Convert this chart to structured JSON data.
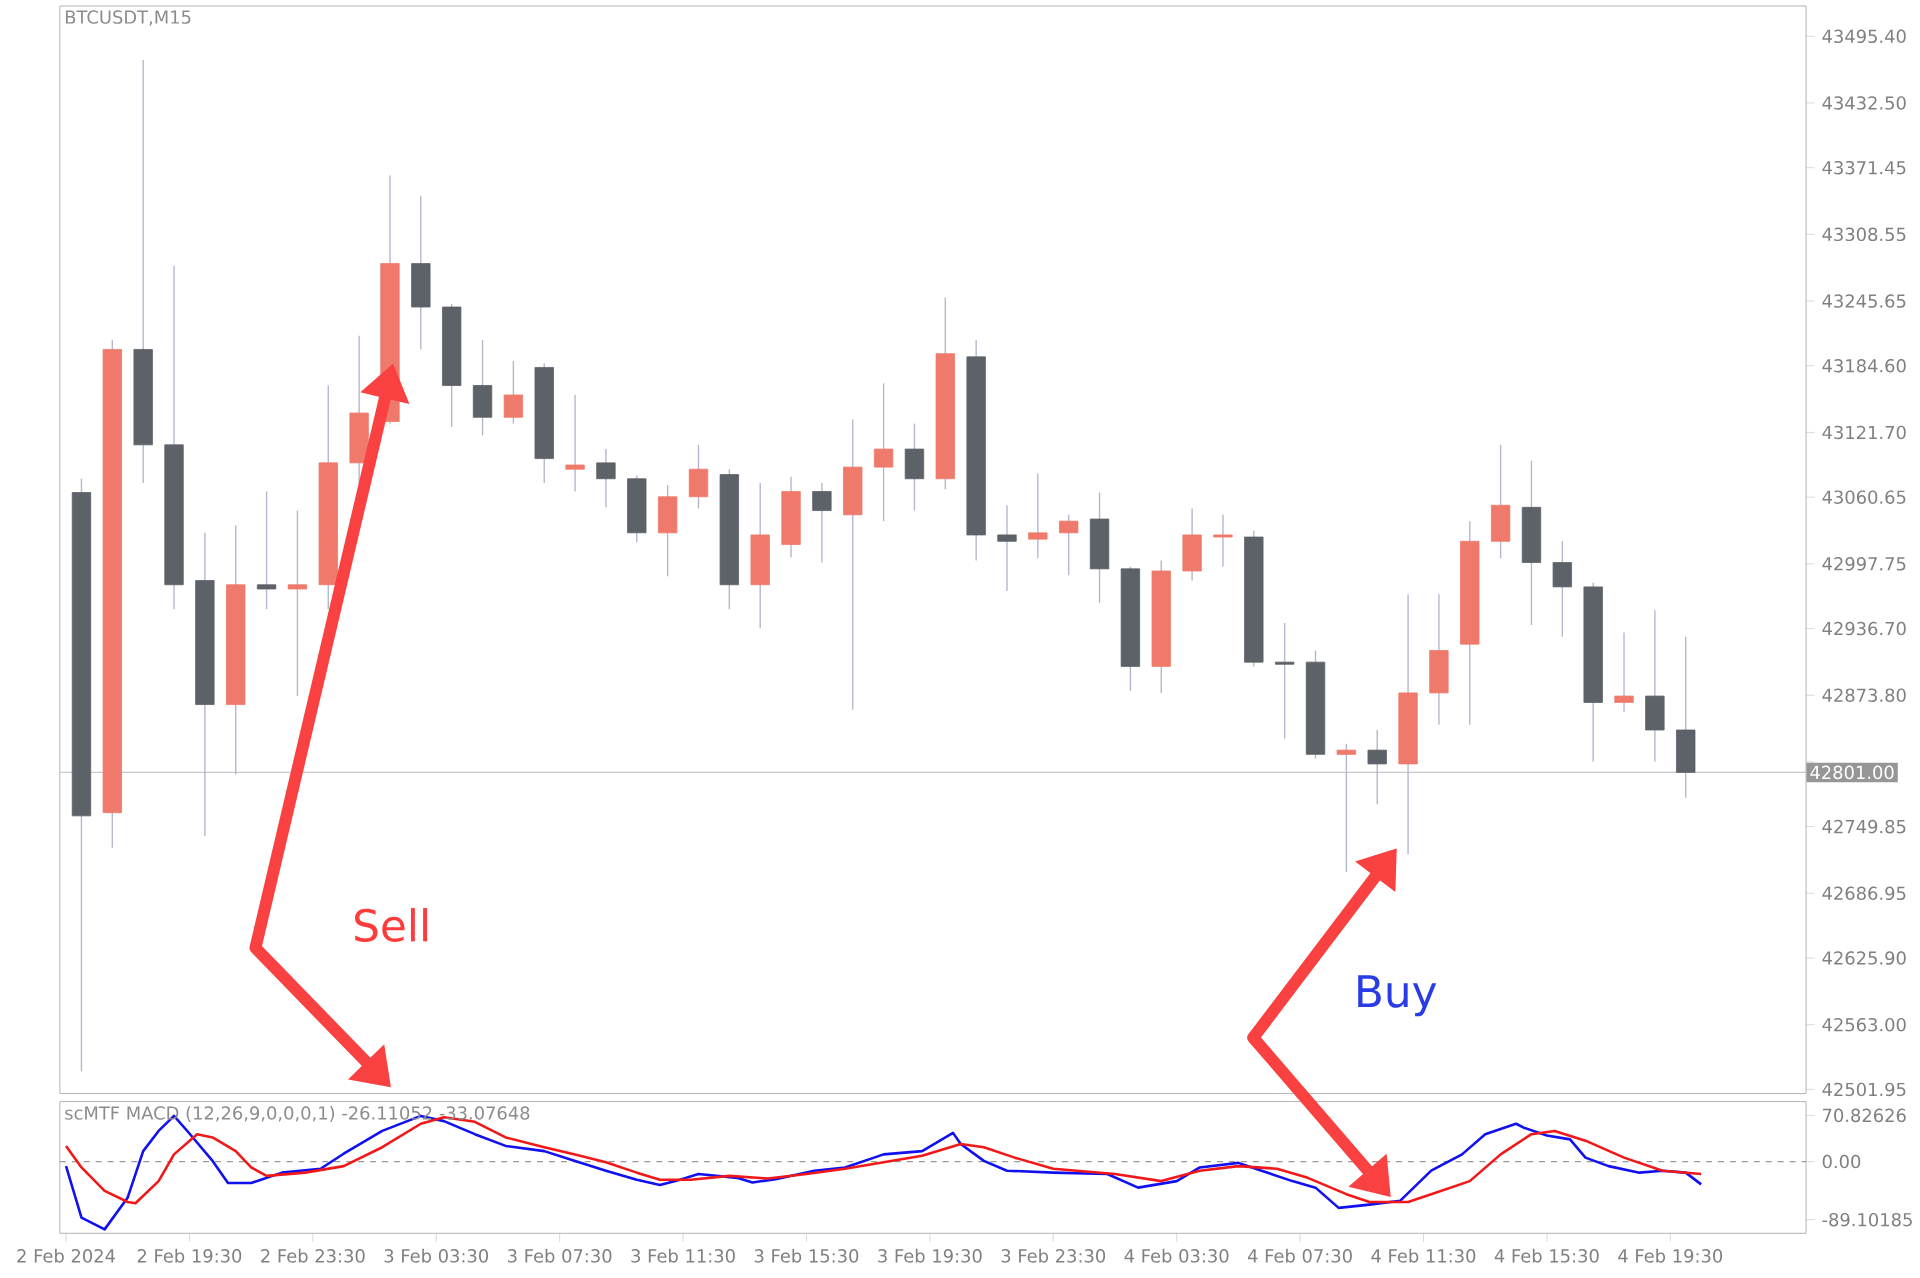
{
  "chart_data": [
    {
      "type": "candlestick",
      "title": "BTCUSDT,M15",
      "tick_labels": "y",
      "x": [
        "2024-02-02T16:00",
        "2024-02-02T17:00",
        "2024-02-02T18:00",
        "2024-02-02T19:00",
        "2024-02-02T20:00",
        "2024-02-02T21:00",
        "2024-02-02T22:00",
        "2024-02-02T23:00",
        "2024-02-03T00:00",
        "2024-02-03T01:00",
        "2024-02-03T02:00",
        "2024-02-03T03:00",
        "2024-02-03T04:00",
        "2024-02-03T05:00",
        "2024-02-03T06:00",
        "2024-02-03T07:00",
        "2024-02-03T08:00",
        "2024-02-03T09:00",
        "2024-02-03T10:00",
        "2024-02-03T11:00",
        "2024-02-03T12:00",
        "2024-02-03T13:00",
        "2024-02-03T14:00",
        "2024-02-03T15:00",
        "2024-02-03T16:00",
        "2024-02-03T17:00",
        "2024-02-03T18:00",
        "2024-02-03T19:00",
        "2024-02-03T20:00",
        "2024-02-03T21:00",
        "2024-02-03T22:00",
        "2024-02-03T23:00",
        "2024-02-04T00:00",
        "2024-02-04T01:00",
        "2024-02-04T02:00",
        "2024-02-04T03:00",
        "2024-02-04T04:00",
        "2024-02-04T05:00",
        "2024-02-04T06:00",
        "2024-02-04T07:00",
        "2024-02-04T08:00",
        "2024-02-04T09:00",
        "2024-02-04T10:00",
        "2024-02-04T11:00",
        "2024-02-04T12:00",
        "2024-02-04T13:00",
        "2024-02-04T14:00",
        "2024-02-04T15:00",
        "2024-02-04T16:00",
        "2024-02-04T17:00",
        "2024-02-04T18:00",
        "2024-02-04T19:00",
        "2024-02-04T20:00"
      ],
      "ohlc": [
        [
          43065,
          43078,
          42519,
          42760
        ],
        [
          42763,
          43209,
          42730,
          43200
        ],
        [
          43200,
          43473,
          43074,
          43110
        ],
        [
          43110,
          43279,
          42955,
          42978
        ],
        [
          42982,
          43027,
          42741,
          42865
        ],
        [
          42865,
          43034,
          42799,
          42978
        ],
        [
          42978,
          43066,
          42955,
          42974
        ],
        [
          42974,
          43048,
          42873,
          42978
        ],
        [
          42978,
          43166,
          42955,
          43093
        ],
        [
          43093,
          43213,
          43074,
          43140
        ],
        [
          43132,
          43364,
          43130,
          43281
        ],
        [
          43281,
          43345,
          43200,
          43240
        ],
        [
          43240,
          43243,
          43127,
          43166
        ],
        [
          43166,
          43209,
          43119,
          43136
        ],
        [
          43136,
          43189,
          43130,
          43157
        ],
        [
          43183,
          43187,
          43074,
          43097
        ],
        [
          43087,
          43157,
          43066,
          43091
        ],
        [
          43093,
          43106,
          43051,
          43078
        ],
        [
          43078,
          43081,
          43018,
          43027
        ],
        [
          43027,
          43072,
          42986,
          43061
        ],
        [
          43061,
          43110,
          43050,
          43087
        ],
        [
          43082,
          43087,
          42955,
          42978
        ],
        [
          42978,
          43074,
          42937,
          43025
        ],
        [
          43016,
          43080,
          43004,
          43066
        ],
        [
          43066,
          43074,
          42999,
          43048
        ],
        [
          43044,
          43134,
          42860,
          43089
        ],
        [
          43089,
          43168,
          43038,
          43106
        ],
        [
          43106,
          43130,
          43048,
          43078
        ],
        [
          43078,
          43249,
          43068,
          43196
        ],
        [
          43193,
          43209,
          43001,
          43025
        ],
        [
          43025,
          43053,
          42972,
          43019
        ],
        [
          43021,
          43083,
          43003,
          43027
        ],
        [
          43027,
          43044,
          42987,
          43038
        ],
        [
          43040,
          43065,
          42961,
          42993
        ],
        [
          42993,
          42995,
          42878,
          42901
        ],
        [
          42901,
          43001,
          42876,
          42991
        ],
        [
          42991,
          43050,
          42982,
          43025
        ],
        [
          43023,
          43044,
          42995,
          43025
        ],
        [
          43023,
          43029,
          42901,
          42905
        ],
        [
          42905,
          42942,
          42833,
          42903
        ],
        [
          42905,
          42916,
          42814,
          42818
        ],
        [
          42818,
          42828,
          42707,
          42822
        ],
        [
          42822,
          42841,
          42771,
          42809
        ],
        [
          42809,
          42969,
          42724,
          42876
        ],
        [
          42876,
          42969,
          42846,
          42916
        ],
        [
          42922,
          43038,
          42846,
          43019
        ],
        [
          43019,
          43110,
          43003,
          43053
        ],
        [
          43051,
          43095,
          42940,
          42999
        ],
        [
          42999,
          43019,
          42929,
          42976
        ],
        [
          42976,
          42980,
          42811,
          42867
        ],
        [
          42867,
          42933,
          42858,
          42873
        ],
        [
          42873,
          42954,
          42811,
          42841
        ],
        [
          42841,
          42929,
          42777,
          42801
        ]
      ],
      "colors": [
        "#5d6168",
        "#ef7a6b",
        "#5d6168",
        "#5d6168",
        "#5d6168",
        "#ef7a6b",
        "#5d6168",
        "#ef7a6b",
        "#ef7a6b",
        "#ef7a6b",
        "#ef7a6b",
        "#5d6168",
        "#5d6168",
        "#5d6168",
        "#ef7a6b",
        "#5d6168",
        "#ef7a6b",
        "#5d6168",
        "#5d6168",
        "#ef7a6b",
        "#ef7a6b",
        "#5d6168",
        "#ef7a6b",
        "#ef7a6b",
        "#5d6168",
        "#ef7a6b",
        "#ef7a6b",
        "#5d6168",
        "#ef7a6b",
        "#5d6168",
        "#5d6168",
        "#ef7a6b",
        "#ef7a6b",
        "#5d6168",
        "#5d6168",
        "#ef7a6b",
        "#ef7a6b",
        "#ef7a6b",
        "#5d6168",
        "#5d6168",
        "#5d6168",
        "#ef7a6b",
        "#5d6168",
        "#ef7a6b",
        "#ef7a6b",
        "#ef7a6b",
        "#ef7a6b",
        "#5d6168",
        "#5d6168",
        "#5d6168",
        "#ef7a6b",
        "#5d6168",
        "#5d6168"
      ],
      "xlim": [
        "2024-02-02T15:18",
        "2024-02-04T23:54"
      ],
      "ylim": [
        42498,
        43524
      ],
      "yticks": [
        {
          "value": 43495.4,
          "label": "43495.40"
        },
        {
          "value": 43432.5,
          "label": "43432.50"
        },
        {
          "value": 43371.45,
          "label": "43371.45"
        },
        {
          "value": 43308.55,
          "label": "43308.55"
        },
        {
          "value": 43245.65,
          "label": "43245.65"
        },
        {
          "value": 43184.6,
          "label": "43184.60"
        },
        {
          "value": 43121.7,
          "label": "43121.70"
        },
        {
          "value": 43060.65,
          "label": "43060.65"
        },
        {
          "value": 42997.75,
          "label": "42997.75"
        },
        {
          "value": 42936.7,
          "label": "42936.70"
        },
        {
          "value": 42873.8,
          "label": "42873.80"
        },
        {
          "value": 42810.9,
          "label": null
        },
        {
          "value": 42749.85,
          "label": "42749.85"
        },
        {
          "value": 42686.95,
          "label": "42686.95"
        },
        {
          "value": 42625.9,
          "label": "42625.90"
        },
        {
          "value": 42563,
          "label": "42563.00"
        },
        {
          "value": 42501.95,
          "label": "42501.95"
        }
      ],
      "ref_lines": [
        {
          "axis": "y",
          "value": 42801,
          "label": "42801.00",
          "color": "#c8c8d0"
        }
      ],
      "annotations": [
        "Sell",
        "Buy"
      ]
    },
    {
      "type": "line",
      "title": "scMTF MACD (12,26,9,0,0,0,1) -26.11052 -33.07648",
      "series": [
        {
          "color": "#1010f0",
          "x": [
            "2024-02-02T15:30",
            "2024-02-02T16:00",
            "2024-02-02T16:45",
            "2024-02-02T17:30",
            "2024-02-02T18:00",
            "2024-02-02T18:30",
            "2024-02-02T19:00",
            "2024-02-02T19:30",
            "2024-02-02T20:15",
            "2024-02-02T20:45",
            "2024-02-02T21:30",
            "2024-02-02T22:30",
            "2024-02-02T23:45",
            "2024-02-03T00:30",
            "2024-02-03T01:45",
            "2024-02-03T03:00",
            "2024-02-03T03:45",
            "2024-02-03T04:45",
            "2024-02-03T05:45",
            "2024-02-03T07:00",
            "2024-02-03T08:00",
            "2024-02-03T09:00",
            "2024-02-03T10:00",
            "2024-02-03T10:45",
            "2024-02-03T11:15",
            "2024-02-03T12:00",
            "2024-02-03T13:15",
            "2024-02-03T13:45",
            "2024-02-03T14:30",
            "2024-02-03T15:45",
            "2024-02-03T16:45",
            "2024-02-03T18:00",
            "2024-02-03T19:15",
            "2024-02-03T20:15",
            "2024-02-03T20:30",
            "2024-02-03T21:15",
            "2024-02-03T22:00",
            "2024-02-03T23:30",
            "2024-02-04T01:15",
            "2024-02-04T02:15",
            "2024-02-04T03:30",
            "2024-02-04T04:15",
            "2024-02-04T05:30",
            "2024-02-04T06:15",
            "2024-02-04T07:15",
            "2024-02-04T08:00",
            "2024-02-04T08:45",
            "2024-02-04T09:45",
            "2024-02-04T10:45",
            "2024-02-04T11:45",
            "2024-02-04T12:45",
            "2024-02-04T13:30",
            "2024-02-04T14:30",
            "2024-02-04T14:45",
            "2024-02-04T15:30",
            "2024-02-04T16:15",
            "2024-02-04T16:45",
            "2024-02-04T17:30",
            "2024-02-04T18:30",
            "2024-02-04T19:15",
            "2024-02-04T20:00",
            "2024-02-04T20:30"
          ],
          "values": [
            -7,
            -86,
            -104,
            -55,
            16,
            47,
            70,
            43,
            1,
            -33,
            -33,
            -17,
            -11,
            12,
            47,
            70,
            62,
            42,
            24,
            16,
            1,
            -14,
            -28,
            -36,
            -30,
            -19,
            -25,
            -32,
            -27,
            -14,
            -9,
            11,
            16,
            44,
            27,
            1,
            -14,
            -17,
            -19,
            -40,
            -30,
            -9,
            -2,
            -14,
            -30,
            -40,
            -71,
            -66,
            -60,
            -14,
            11,
            42,
            58,
            52,
            40,
            34,
            6,
            -7,
            -17,
            -14,
            -17,
            -35
          ]
        },
        {
          "color": "#f01818",
          "x": [
            "2024-02-02T15:30",
            "2024-02-02T16:00",
            "2024-02-02T16:45",
            "2024-02-02T17:30",
            "2024-02-02T17:45",
            "2024-02-02T18:30",
            "2024-02-02T19:00",
            "2024-02-02T19:45",
            "2024-02-02T20:15",
            "2024-02-02T21:00",
            "2024-02-02T21:30",
            "2024-02-02T22:00",
            "2024-02-02T23:15",
            "2024-02-03T00:30",
            "2024-02-03T01:45",
            "2024-02-03T03:00",
            "2024-02-03T03:45",
            "2024-02-03T04:45",
            "2024-02-03T05:45",
            "2024-02-03T07:00",
            "2024-02-03T08:00",
            "2024-02-03T09:00",
            "2024-02-03T10:00",
            "2024-02-03T10:45",
            "2024-02-03T11:45",
            "2024-02-03T13:00",
            "2024-02-03T14:15",
            "2024-02-03T15:30",
            "2024-02-03T16:45",
            "2024-02-03T18:00",
            "2024-02-03T19:15",
            "2024-02-03T20:30",
            "2024-02-03T21:15",
            "2024-02-03T22:15",
            "2024-02-03T23:30",
            "2024-02-04T01:30",
            "2024-02-04T03:00",
            "2024-02-04T04:15",
            "2024-02-04T05:30",
            "2024-02-04T06:45",
            "2024-02-04T07:45",
            "2024-02-04T09:00",
            "2024-02-04T09:45",
            "2024-02-04T11:00",
            "2024-02-04T11:45",
            "2024-02-04T13:00",
            "2024-02-04T14:00",
            "2024-02-04T15:00",
            "2024-02-04T15:45",
            "2024-02-04T16:45",
            "2024-02-04T18:00",
            "2024-02-04T19:15",
            "2024-02-04T20:30"
          ],
          "values": [
            24,
            -9,
            -45,
            -62,
            -64,
            -30,
            11,
            42,
            37,
            16,
            -9,
            -22,
            -17,
            -7,
            22,
            58,
            68,
            61,
            37,
            22,
            11,
            -1,
            -17,
            -28,
            -28,
            -22,
            -26,
            -19,
            -11,
            -1,
            9,
            27,
            22,
            6,
            -11,
            -19,
            -30,
            -14,
            -7,
            -11,
            -25,
            -50,
            -62,
            -62,
            -50,
            -30,
            11,
            42,
            47,
            32,
            6,
            -14,
            -19
          ]
        }
      ],
      "xlim": [
        "2024-02-02T15:18",
        "2024-02-04T23:54"
      ],
      "ylim": [
        -110,
        92
      ],
      "xticks": [
        {
          "value": "2024-02-02T15:30",
          "label": "2 Feb 2024"
        },
        {
          "value": "2024-02-02T19:30",
          "label": "2 Feb 19:30"
        },
        {
          "value": "2024-02-02T23:30",
          "label": "2 Feb 23:30"
        },
        {
          "value": "2024-02-03T03:30",
          "label": "3 Feb 03:30"
        },
        {
          "value": "2024-02-03T07:30",
          "label": "3 Feb 07:30"
        },
        {
          "value": "2024-02-03T11:30",
          "label": "3 Feb 11:30"
        },
        {
          "value": "2024-02-03T15:30",
          "label": "3 Feb 15:30"
        },
        {
          "value": "2024-02-03T19:30",
          "label": "3 Feb 19:30"
        },
        {
          "value": "2024-02-03T23:30",
          "label": "3 Feb 23:30"
        },
        {
          "value": "2024-02-04T03:30",
          "label": "4 Feb 03:30"
        },
        {
          "value": "2024-02-04T07:30",
          "label": "4 Feb 07:30"
        },
        {
          "value": "2024-02-04T11:30",
          "label": "4 Feb 11:30"
        },
        {
          "value": "2024-02-04T15:30",
          "label": "4 Feb 15:30"
        },
        {
          "value": "2024-02-04T19:30",
          "label": "4 Feb 19:30"
        }
      ],
      "yticks": [
        {
          "value": 70.82626,
          "label": "70.82626"
        },
        {
          "value": 0,
          "label": "0.00"
        },
        {
          "value": -89.10185,
          "label": "-89.10185"
        }
      ],
      "ref_lines": [
        {
          "axis": "y",
          "value": 0,
          "color": "#999999",
          "line_style": "dashed"
        }
      ],
      "line_style": "solid",
      "marker": "none"
    }
  ]
}
